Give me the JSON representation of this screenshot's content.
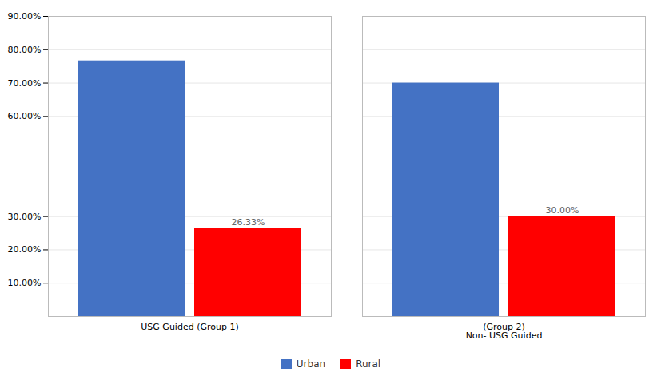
{
  "chart_data": {
    "type": "bar",
    "categories": [
      "USG Guided (Group 1)",
      "(Group 2)\nNon- USG Guided"
    ],
    "series": [
      {
        "name": "Urban",
        "color": "#4472C4",
        "values": [
          0.7667,
          0.7
        ]
      },
      {
        "name": "Rural",
        "color": "#FF0000",
        "values": [
          0.2633,
          0.3
        ],
        "value_labels": [
          "26.33%",
          "30.00%"
        ]
      }
    ],
    "ylim": [
      0,
      0.9
    ],
    "yticks": [
      {
        "value": 0.1,
        "label": "10.00%"
      },
      {
        "value": 0.2,
        "label": "20.00%"
      },
      {
        "value": 0.3,
        "label": "30.00%"
      },
      {
        "value": 0.6,
        "label": "60.00%"
      },
      {
        "value": 0.7,
        "label": "70.00%"
      },
      {
        "value": 0.8,
        "label": "80.00%"
      },
      {
        "value": 0.9,
        "label": "90.00%"
      }
    ],
    "grid": true,
    "data_labels": true,
    "legend": "bottom"
  }
}
